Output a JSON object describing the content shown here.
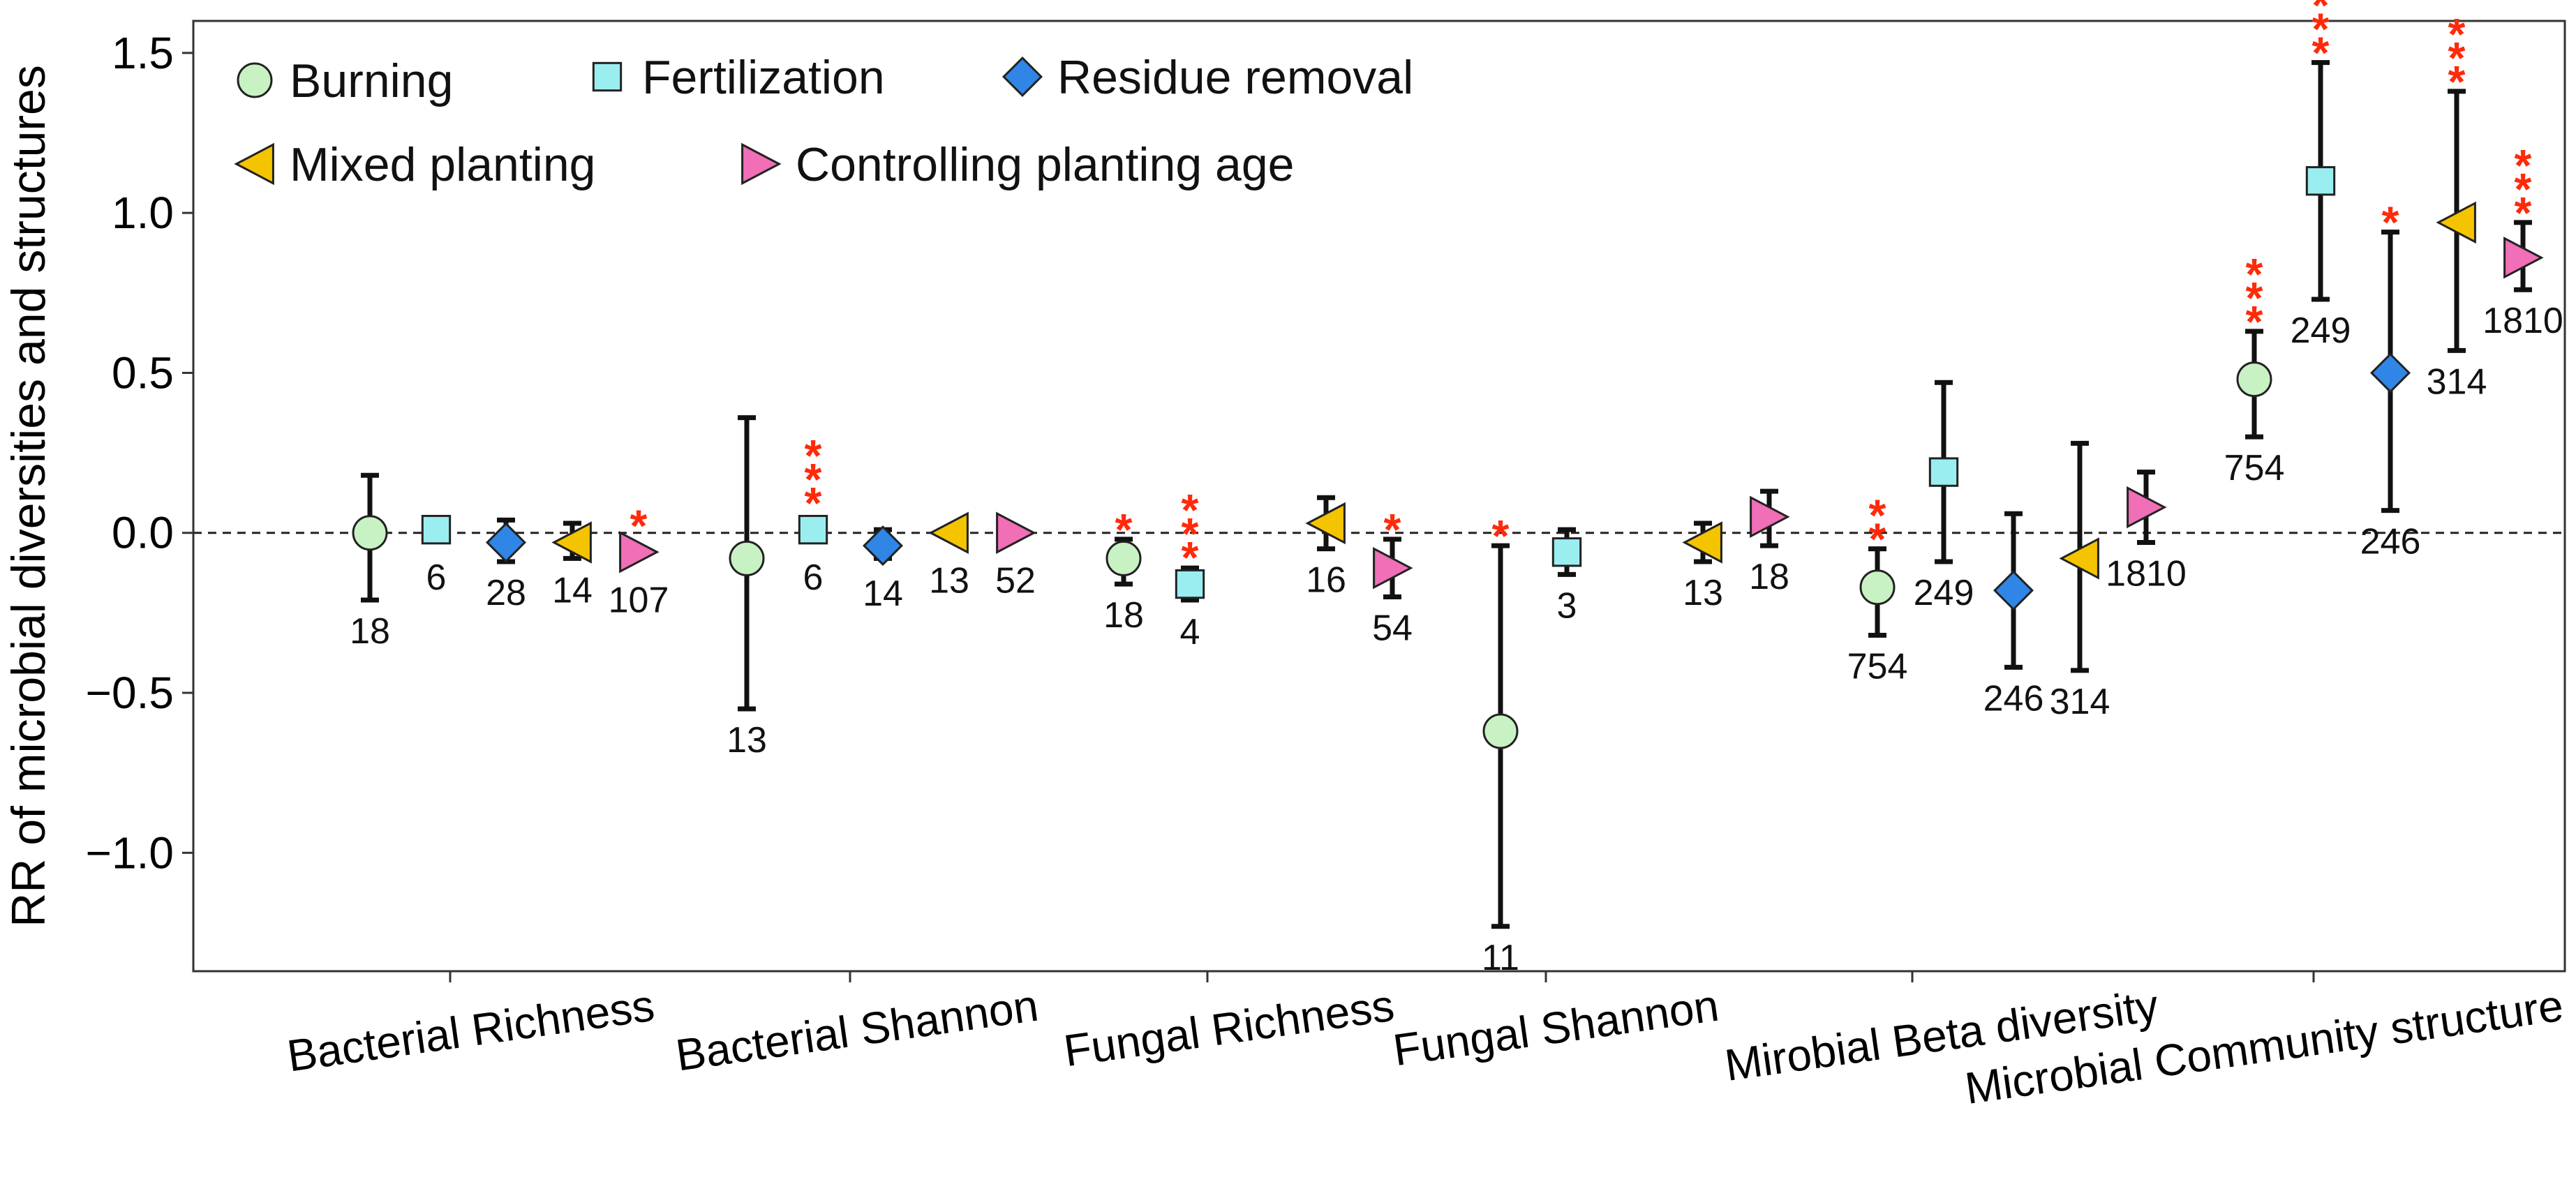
{
  "chart_data": {
    "type": "scatter",
    "ylabel": "RR of microbial diversities and structures",
    "xlabel": "",
    "ylim": [
      -1.37,
      1.6
    ],
    "yticks": [
      -1.0,
      -0.5,
      0.0,
      0.5,
      1.0,
      1.5
    ],
    "ytick_labels": [
      "−1.0",
      "−0.5",
      "0.0",
      "0.5",
      "1.0",
      "1.5"
    ],
    "reference_line": 0.0,
    "categories": [
      "Bacterial Richness",
      "Bacterial Shannon",
      "Fungal Richness",
      "Fungal Shannon",
      "Mirobial Beta diversity",
      "Microbial Community structure"
    ],
    "legend_position": "top-left",
    "series": [
      {
        "name": "Burning",
        "marker": "circle",
        "color": "#c8f2c3",
        "points": [
          {
            "category": 0,
            "y": 0.0,
            "low": -0.21,
            "high": 0.18,
            "n": "18",
            "sig": ""
          },
          {
            "category": 1,
            "y": -0.08,
            "low": -0.55,
            "high": 0.36,
            "n": "13",
            "sig": ""
          },
          {
            "category": 2,
            "y": -0.08,
            "low": -0.16,
            "high": -0.02,
            "n": "18",
            "sig": "*"
          },
          {
            "category": 3,
            "y": -0.62,
            "low": -1.23,
            "high": -0.04,
            "n": "11",
            "sig": "*"
          },
          {
            "category": 4,
            "y": -0.17,
            "low": -0.32,
            "high": -0.05,
            "n": "754",
            "sig": "**"
          },
          {
            "category": 5,
            "y": 0.48,
            "low": 0.3,
            "high": 0.63,
            "n": "754",
            "sig": "***"
          }
        ]
      },
      {
        "name": "Fertilization",
        "marker": "square",
        "color": "#9beef0",
        "points": [
          {
            "category": 0,
            "y": 0.01,
            "low": 0.01,
            "high": 0.01,
            "n": "6",
            "sig": ""
          },
          {
            "category": 1,
            "y": 0.01,
            "low": 0.01,
            "high": 0.01,
            "n": "6",
            "sig": "***"
          },
          {
            "category": 2,
            "y": -0.16,
            "low": -0.21,
            "high": -0.11,
            "n": "4",
            "sig": "***"
          },
          {
            "category": 3,
            "y": -0.06,
            "low": -0.13,
            "high": 0.01,
            "n": "3",
            "sig": ""
          },
          {
            "category": 4,
            "y": 0.19,
            "low": -0.09,
            "high": 0.47,
            "n": "249",
            "sig": ""
          },
          {
            "category": 5,
            "y": 1.1,
            "low": 0.73,
            "high": 1.47,
            "n": "249",
            "sig": "***"
          }
        ]
      },
      {
        "name": "Residue removal",
        "marker": "diamond",
        "color": "#2f86e6",
        "points": [
          {
            "category": 0,
            "y": -0.03,
            "low": -0.09,
            "high": 0.04,
            "n": "28",
            "sig": ""
          },
          {
            "category": 1,
            "y": -0.04,
            "low": -0.08,
            "high": 0.01,
            "n": "14",
            "sig": ""
          },
          {
            "category": 4,
            "y": -0.18,
            "low": -0.42,
            "high": 0.06,
            "n": "246",
            "sig": ""
          },
          {
            "category": 5,
            "y": 0.5,
            "low": 0.07,
            "high": 0.94,
            "n": "246",
            "sig": "*"
          }
        ]
      },
      {
        "name": "Mixed planting",
        "marker": "triangle-left",
        "color": "#f5c400",
        "points": [
          {
            "category": 0,
            "y": -0.03,
            "low": -0.08,
            "high": 0.03,
            "n": "14",
            "sig": ""
          },
          {
            "category": 1,
            "y": 0.0,
            "low": 0.0,
            "high": 0.0,
            "n": "13",
            "sig": ""
          },
          {
            "category": 2,
            "y": 0.03,
            "low": -0.05,
            "high": 0.11,
            "n": "16",
            "sig": ""
          },
          {
            "category": 3,
            "y": -0.03,
            "low": -0.09,
            "high": 0.03,
            "n": "13",
            "sig": ""
          },
          {
            "category": 4,
            "y": -0.08,
            "low": -0.43,
            "high": 0.28,
            "n": "314",
            "sig": ""
          },
          {
            "category": 5,
            "y": 0.97,
            "low": 0.57,
            "high": 1.38,
            "n": "314",
            "sig": "***"
          }
        ]
      },
      {
        "name": "Controlling planting age",
        "marker": "triangle-right",
        "color": "#f06fb6",
        "points": [
          {
            "category": 0,
            "y": -0.06,
            "low": -0.06,
            "high": -0.06,
            "n": "107",
            "sig": "*"
          },
          {
            "category": 1,
            "y": 0.0,
            "low": 0.0,
            "high": 0.0,
            "n": "52",
            "sig": ""
          },
          {
            "category": 2,
            "y": -0.11,
            "low": -0.2,
            "high": -0.02,
            "n": "54",
            "sig": "*"
          },
          {
            "category": 3,
            "y": 0.05,
            "low": -0.04,
            "high": 0.13,
            "n": "18",
            "sig": ""
          },
          {
            "category": 4,
            "y": 0.08,
            "low": -0.03,
            "high": 0.19,
            "n": "1810",
            "sig": ""
          },
          {
            "category": 5,
            "y": 0.86,
            "low": 0.76,
            "high": 0.97,
            "n": "1810",
            "sig": "***"
          }
        ]
      }
    ]
  }
}
